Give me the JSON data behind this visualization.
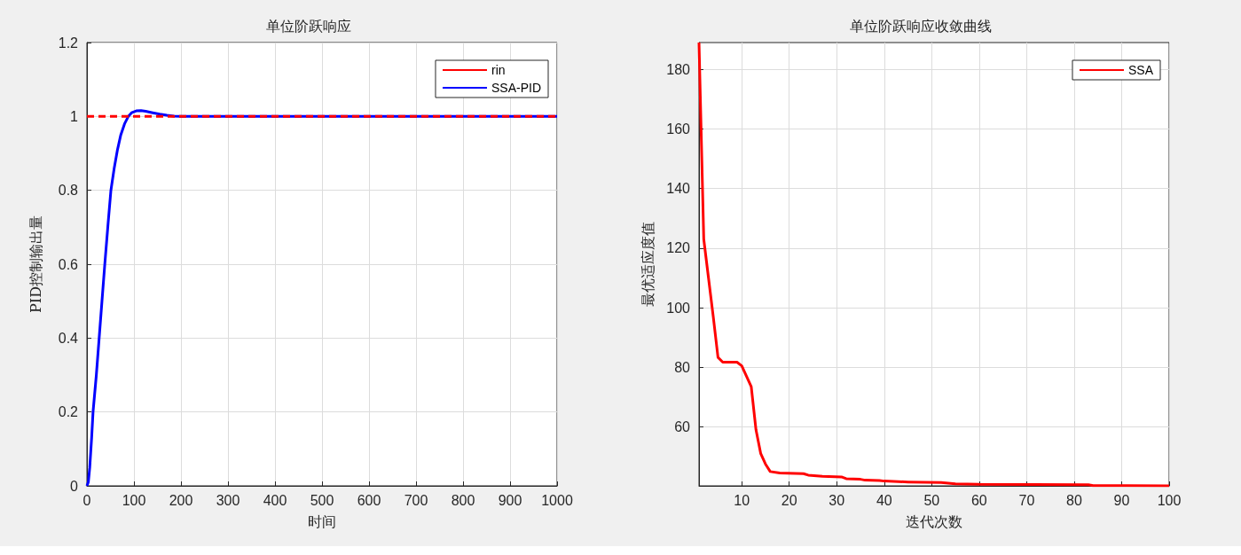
{
  "chart_data": [
    {
      "type": "line",
      "title": "单位阶跃响应",
      "xlabel": "时间",
      "ylabel": "PID控制输出量",
      "xlim": [
        0,
        1000
      ],
      "xticks": [
        0,
        100,
        200,
        300,
        400,
        500,
        600,
        700,
        800,
        900,
        1000
      ],
      "ylim": [
        0,
        1.2
      ],
      "yticks": [
        0,
        0.2,
        0.4,
        0.6,
        0.8,
        1,
        1.2
      ],
      "grid": true,
      "legend": "top right",
      "series": [
        {
          "name": "rin",
          "color": "#ff0000",
          "line_style": "dashed",
          "x": [
            0,
            1000
          ],
          "values": [
            1,
            1
          ]
        },
        {
          "name": "SSA-PID",
          "color": "#0000ff",
          "line_style": "solid",
          "x": [
            0,
            3,
            6,
            10,
            13,
            20,
            26,
            32,
            38,
            45,
            51,
            58,
            65,
            72,
            80,
            88,
            95,
            105,
            115,
            125,
            140,
            155,
            170,
            185,
            200,
            300,
            500,
            1000
          ],
          "values": [
            0,
            0.01,
            0.05,
            0.13,
            0.2,
            0.3,
            0.4,
            0.5,
            0.6,
            0.71,
            0.8,
            0.86,
            0.91,
            0.95,
            0.98,
            1.0,
            1.01,
            1.015,
            1.016,
            1.014,
            1.01,
            1.006,
            1.003,
            1.001,
            1.0,
            1.0,
            1.0,
            1.0
          ]
        }
      ]
    },
    {
      "type": "line",
      "title": "单位阶跃响应收敛曲线",
      "xlabel": "迭代次数",
      "ylabel": "最优适应度值",
      "xlim": [
        1,
        100
      ],
      "xticks": [
        10,
        20,
        30,
        40,
        50,
        60,
        70,
        80,
        90,
        100
      ],
      "ylim": [
        40.2,
        189
      ],
      "yticks": [
        60,
        80,
        100,
        120,
        140,
        160,
        180
      ],
      "grid": true,
      "legend": "top right",
      "series": [
        {
          "name": "SSA",
          "color": "#ff0000",
          "line_style": "solid",
          "x": [
            1,
            2,
            3,
            4,
            5,
            6,
            7,
            8,
            9,
            10,
            11,
            12,
            13,
            14,
            15,
            16,
            18,
            23,
            24,
            27,
            31,
            32,
            35,
            36,
            39,
            40,
            45,
            52,
            55,
            60,
            83,
            84,
            100
          ],
          "values": [
            189,
            123,
            110,
            97,
            83.3,
            81.7,
            81.7,
            81.7,
            81.7,
            80.5,
            77,
            73.5,
            59,
            51,
            47.5,
            45,
            44.5,
            44.3,
            43.8,
            43.4,
            43.2,
            42.6,
            42.4,
            42.1,
            42.0,
            41.8,
            41.5,
            41.3,
            40.9,
            40.7,
            40.6,
            40.3,
            40.2
          ]
        }
      ]
    }
  ]
}
